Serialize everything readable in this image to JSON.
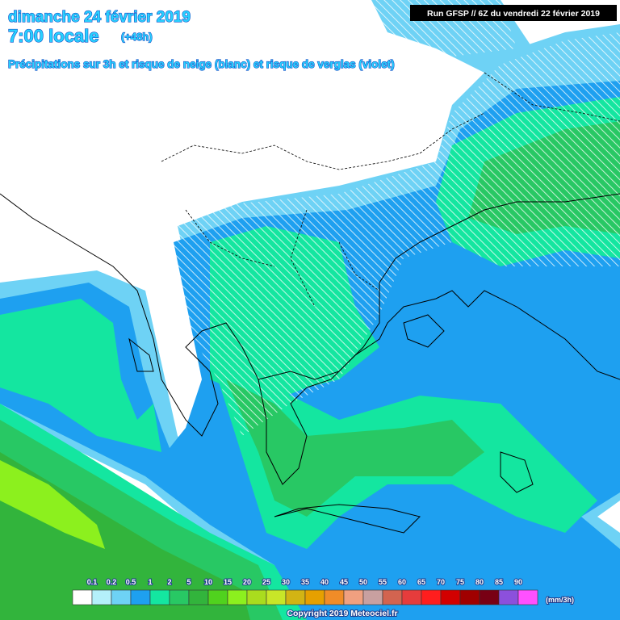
{
  "header": {
    "date": "dimanche 24 février 2019",
    "time": "7:00 locale",
    "lead": "(+48h)",
    "subtitle": "Précipitations sur 3h et risque de neige (blanc) et risque de verglas (violet)"
  },
  "run": "Run GFSP // 6Z du vendredi 22 février 2019",
  "legend": {
    "labels": [
      0.1,
      0.2,
      0.5,
      1,
      2,
      5,
      10,
      15,
      20,
      25,
      30,
      35,
      40,
      45,
      50,
      55,
      60,
      65,
      70,
      75,
      80,
      85,
      90
    ],
    "colors": [
      "#ffffff",
      "#b4f0fa",
      "#6ed2f5",
      "#1ea0f0",
      "#14e6a0",
      "#28c864",
      "#32b43c",
      "#50d21e",
      "#8cf01e",
      "#aadc1e",
      "#c8e628",
      "#d2b414",
      "#e6a000",
      "#f08c28",
      "#f0a080",
      "#c8a0a0",
      "#d26450",
      "#e63c3c",
      "#ff1e1e",
      "#d20000",
      "#a00000",
      "#780014",
      "#8c50dc",
      "#ff50ff"
    ],
    "unit": "(mm/3h)"
  },
  "copyright": "Copyright 2019 Meteociel.fr"
}
